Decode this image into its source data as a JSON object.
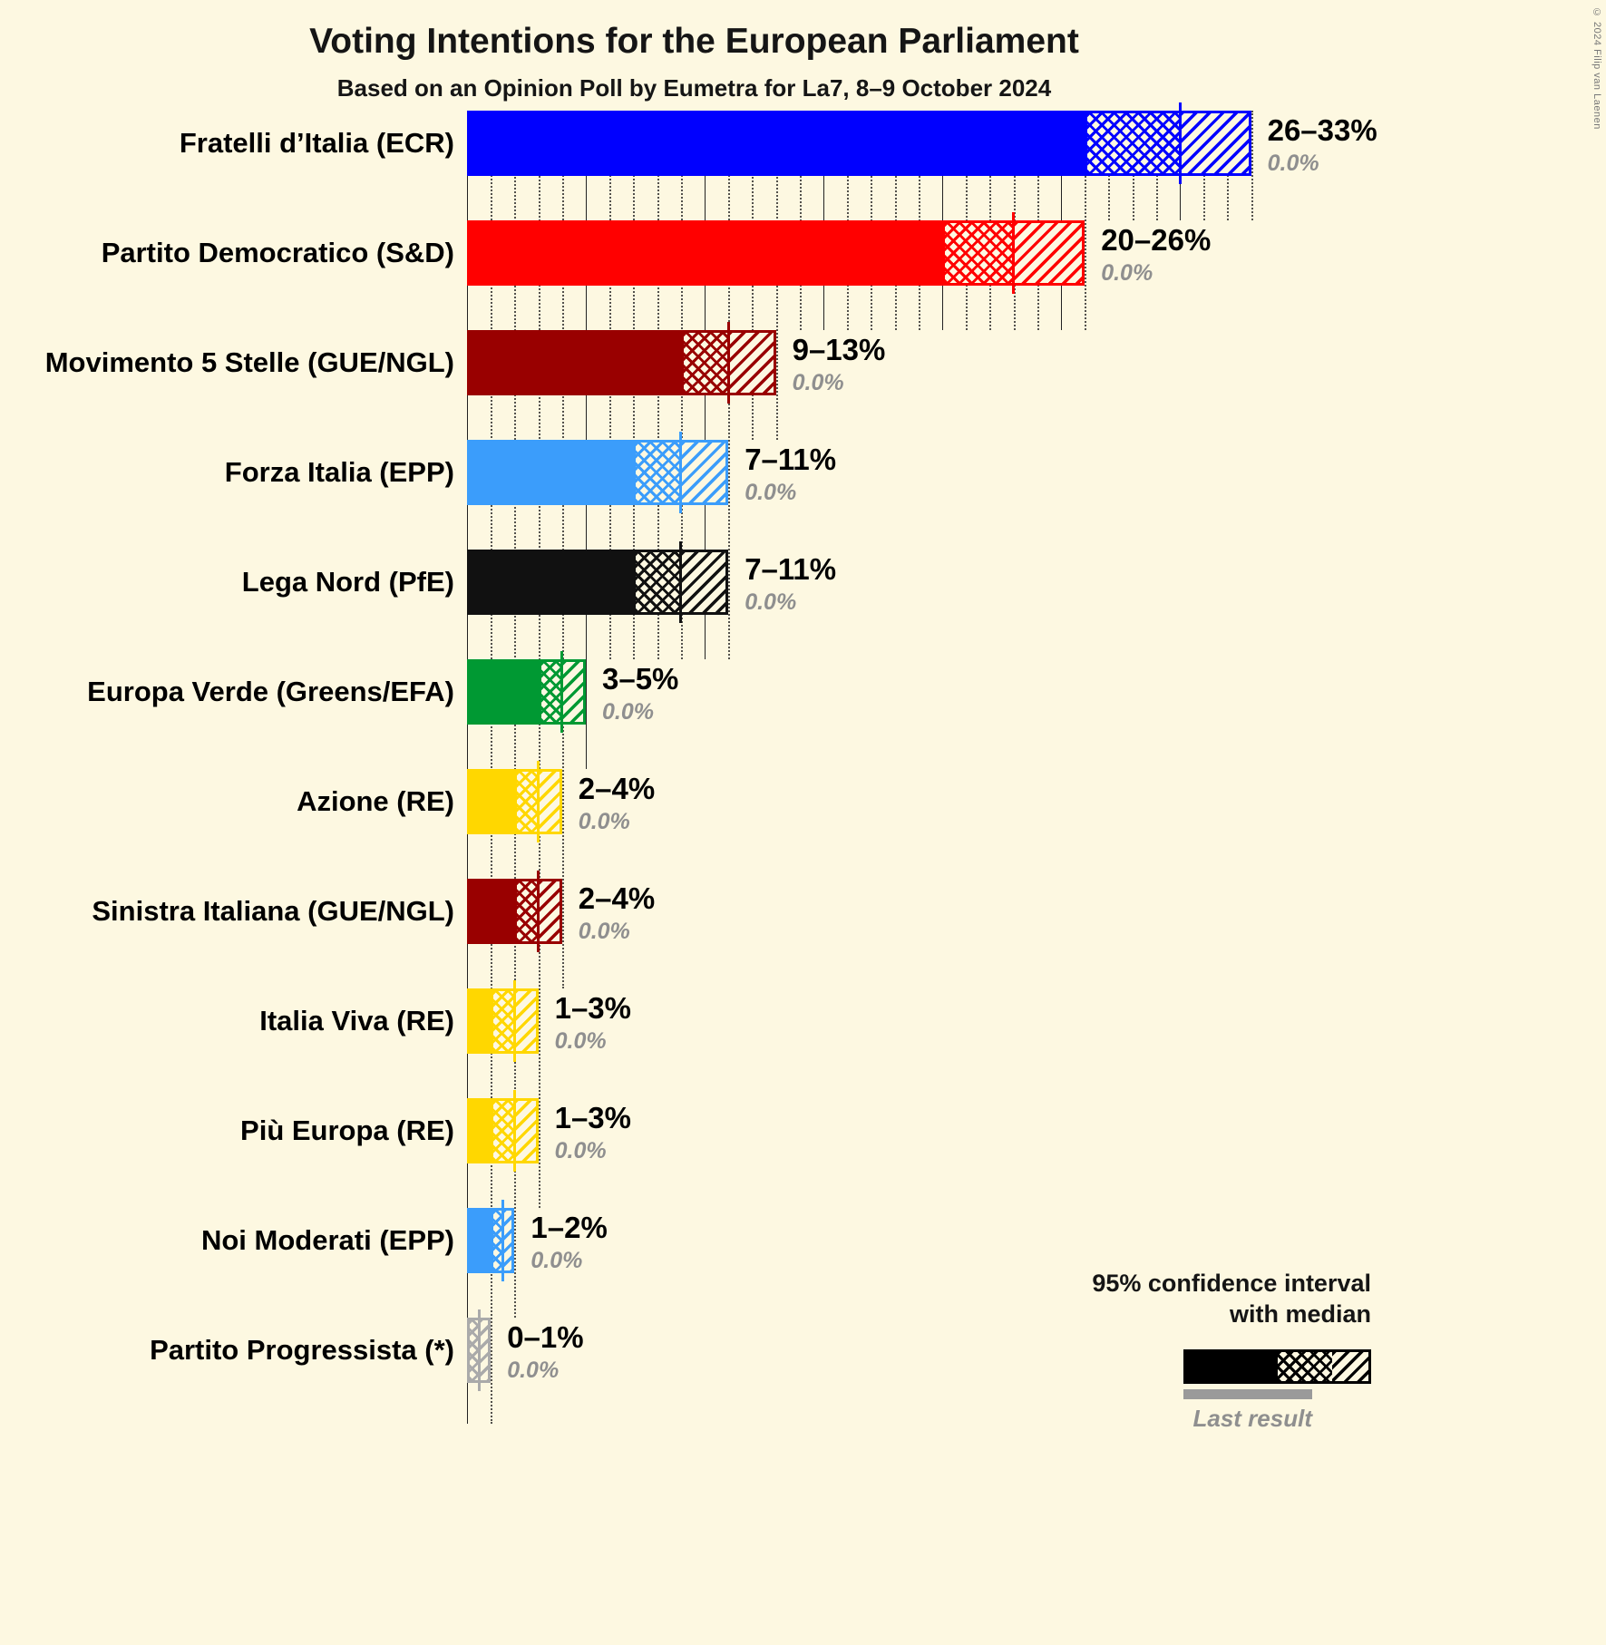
{
  "copyright": "© 2024 Filip van Laenen",
  "legend": {
    "ci_label_line1": "95% confidence interval",
    "ci_label_line2": "with median",
    "last_result_label": "Last result"
  },
  "chart_data": {
    "type": "bar",
    "orientation": "horizontal",
    "title": "Voting Intentions for the European Parliament",
    "subtitle": "Based on an Opinion Poll by Eumetra for La7, 8–9 October 2024",
    "xlabel": "",
    "ylabel": "",
    "x_axis": {
      "min": 0,
      "max": 33,
      "unit": "%",
      "major_step": 5,
      "minor_step": 1
    },
    "legend_note": "95% confidence interval with median; gray underline = last result",
    "parties": [
      {
        "name": "Fratelli d’Italia (ECR)",
        "group": "ECR",
        "low": 26,
        "median": 30,
        "high": 33,
        "range_label": "26–33%",
        "last_result_label": "0.0%",
        "color": "#0000FF"
      },
      {
        "name": "Partito Democratico (S&D)",
        "group": "S&D",
        "low": 20,
        "median": 23,
        "high": 26,
        "range_label": "20–26%",
        "last_result_label": "0.0%",
        "color": "#FF0000"
      },
      {
        "name": "Movimento 5 Stelle (GUE/NGL)",
        "group": "GUE/NGL",
        "low": 9,
        "median": 11,
        "high": 13,
        "range_label": "9–13%",
        "last_result_label": "0.0%",
        "color": "#990000"
      },
      {
        "name": "Forza Italia (EPP)",
        "group": "EPP",
        "low": 7,
        "median": 9,
        "high": 11,
        "range_label": "7–11%",
        "last_result_label": "0.0%",
        "color": "#3B9DFB"
      },
      {
        "name": "Lega Nord (PfE)",
        "group": "PfE",
        "low": 7,
        "median": 9,
        "high": 11,
        "range_label": "7–11%",
        "last_result_label": "0.0%",
        "color": "#111111"
      },
      {
        "name": "Europa Verde (Greens/EFA)",
        "group": "Greens/EFA",
        "low": 3,
        "median": 4,
        "high": 5,
        "range_label": "3–5%",
        "last_result_label": "0.0%",
        "color": "#009933"
      },
      {
        "name": "Azione (RE)",
        "group": "RE",
        "low": 2,
        "median": 3,
        "high": 4,
        "range_label": "2–4%",
        "last_result_label": "0.0%",
        "color": "#FFD700"
      },
      {
        "name": "Sinistra Italiana (GUE/NGL)",
        "group": "GUE/NGL",
        "low": 2,
        "median": 3,
        "high": 4,
        "range_label": "2–4%",
        "last_result_label": "0.0%",
        "color": "#990000"
      },
      {
        "name": "Italia Viva (RE)",
        "group": "RE",
        "low": 1,
        "median": 2,
        "high": 3,
        "range_label": "1–3%",
        "last_result_label": "0.0%",
        "color": "#FFD700"
      },
      {
        "name": "Più Europa (RE)",
        "group": "RE",
        "low": 1,
        "median": 2,
        "high": 3,
        "range_label": "1–3%",
        "last_result_label": "0.0%",
        "color": "#FFD700"
      },
      {
        "name": "Noi Moderati (EPP)",
        "group": "EPP",
        "low": 1,
        "median": 1.5,
        "high": 2,
        "range_label": "1–2%",
        "last_result_label": "0.0%",
        "color": "#3B9DFB"
      },
      {
        "name": "Partito Progressista (*)",
        "group": "*",
        "low": 0,
        "median": 0.5,
        "high": 1,
        "range_label": "0–1%",
        "last_result_label": "0.0%",
        "color": "#AAAAAA"
      }
    ]
  }
}
